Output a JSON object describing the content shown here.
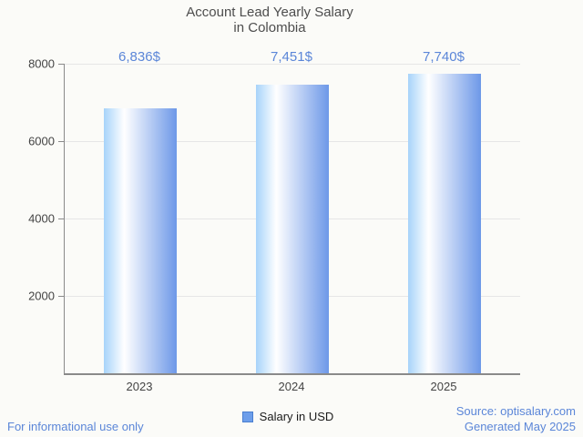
{
  "title": {
    "line1": "Account Lead Yearly Salary",
    "line2": "in Colombia"
  },
  "chart_data": {
    "type": "bar",
    "title": "Account Lead Yearly Salary in Colombia",
    "categories": [
      "2023",
      "2024",
      "2025"
    ],
    "values": [
      6836,
      7451,
      7740
    ],
    "value_labels": [
      "6,836$",
      "7,451$",
      "7,740$"
    ],
    "series_name": "Salary in USD",
    "xlabel": "",
    "ylabel": "",
    "ylim": [
      0,
      8000
    ],
    "yticks": [
      2000,
      4000,
      6000,
      8000
    ],
    "grid": true,
    "legend_position": "bottom"
  },
  "legend": {
    "label": "Salary in USD"
  },
  "footer": {
    "left": "For informational use only",
    "source": "Source: optisalary.com",
    "generated": "Generated May 2025"
  },
  "colors": {
    "background": "#fbfbf8",
    "title_text": "#4d4d4d",
    "axis_text": "#444444",
    "accent_blue": "#5b86d8",
    "axis_line": "#8a8a8a",
    "gridline": "#e6e6e6",
    "bar_gradient": [
      "#a7d3fa",
      "#ffffff",
      "#6d98e8"
    ],
    "legend_marker_fill": "#6d9eea",
    "legend_marker_border": "#4a7fd0",
    "legend_text": "#1a1a1a"
  }
}
